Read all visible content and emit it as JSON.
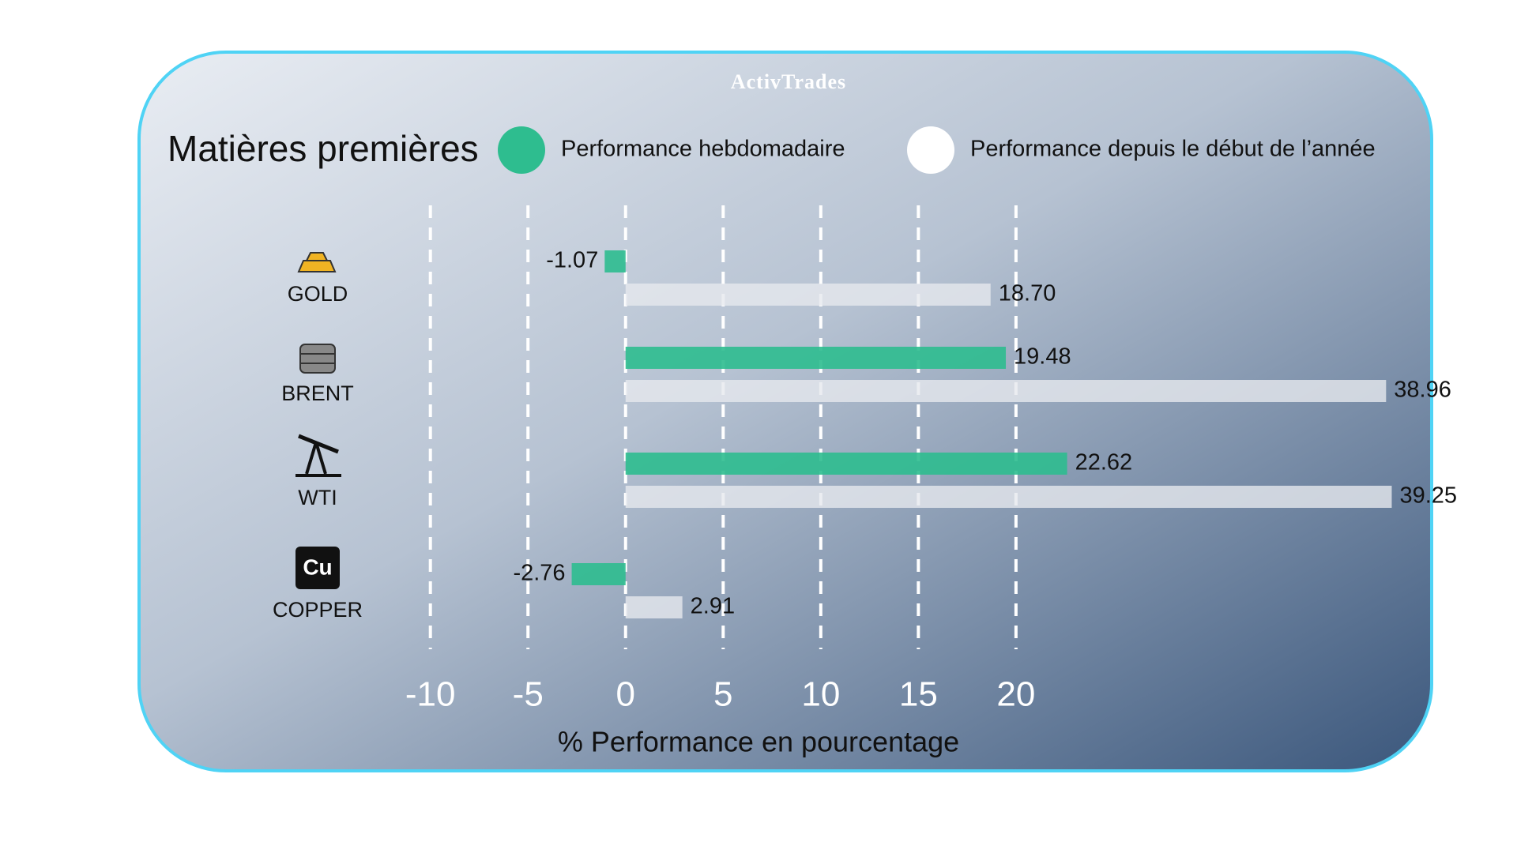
{
  "brand": "ActivTrades",
  "chart_data": {
    "type": "bar",
    "horizontal": true,
    "title": "Matières premières",
    "x_label": "% Performance en pourcentage",
    "categories": [
      "GOLD",
      "BRENT",
      "WTI",
      "COPPER"
    ],
    "series": [
      {
        "name": "Performance hebdomadaire",
        "color": "#2ebd8f",
        "values": [
          -1.07,
          19.48,
          22.62,
          -2.76
        ],
        "value_labels": [
          "-1.07",
          "19.48",
          "22.62",
          "-2.76"
        ]
      },
      {
        "name": "Performance depuis le début de l’année",
        "color": "#e6e9ee",
        "values": [
          18.7,
          38.96,
          39.25,
          2.91
        ],
        "value_labels": [
          "18.70",
          "38.96",
          "39.25",
          "2.91"
        ]
      }
    ],
    "xlim": [
      -11,
      40
    ],
    "xticks": [
      -10,
      -5,
      0,
      5,
      10,
      15,
      20
    ],
    "grid": true
  }
}
